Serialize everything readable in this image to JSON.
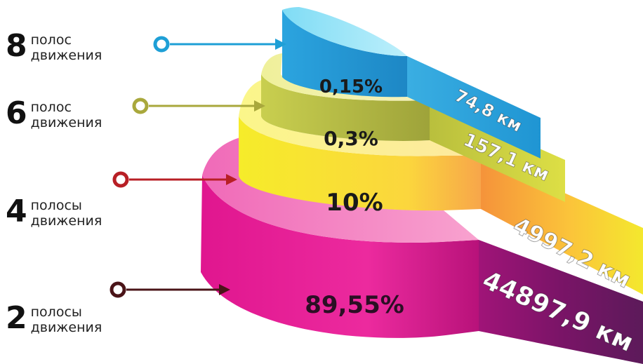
{
  "chart_data": {
    "type": "other",
    "title": "",
    "tiers": [
      {
        "lanes": "8",
        "label_line1": "полос",
        "label_line2": "движения",
        "share_label": "0,15%",
        "share_value": 0.15,
        "length_label": "74,8 км",
        "length_km": 74.8,
        "color": "#2ba4df",
        "marker_color": "#1e9fd6"
      },
      {
        "lanes": "6",
        "label_line1": "полос",
        "label_line2": "движения",
        "share_label": "0,3%",
        "share_value": 0.3,
        "length_label": "157,1 км",
        "length_km": 157.1,
        "color": "#c9cf4f",
        "marker_color": "#a9a83c"
      },
      {
        "lanes": "4",
        "label_line1": "полосы",
        "label_line2": "движения",
        "share_label": "10%",
        "share_value": 10,
        "length_label": "4997,2 км",
        "length_km": 4997.2,
        "color": "#f6ec2a",
        "marker_color": "#b81f25"
      },
      {
        "lanes": "2",
        "label_line1": "полосы",
        "label_line2": "движения",
        "share_label": "89,55%",
        "share_value": 89.55,
        "length_label": "44897,9 км",
        "length_km": 44897.9,
        "color": "#e0168f",
        "marker_color": "#4a1418"
      }
    ]
  }
}
